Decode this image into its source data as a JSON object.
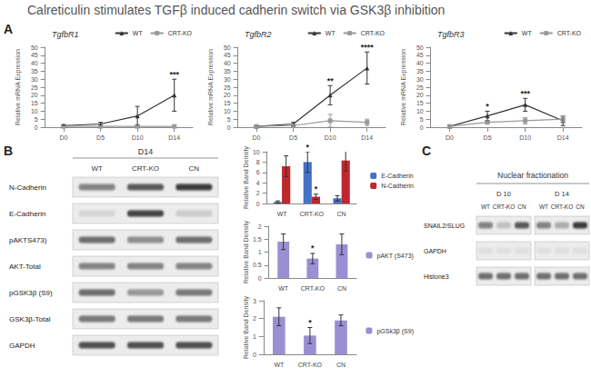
{
  "figure_title": "Calreticulin stimulates TGFβ induced cadherin switch via GSK3β inhibition",
  "panel_labels": [
    "A",
    "B",
    "C"
  ],
  "chart_data": [
    {
      "type": "line",
      "title": "TgfbR1",
      "y_label": "Relative mRNA Expression",
      "categories": [
        "D0",
        "D5",
        "D10",
        "D14"
      ],
      "series": [
        {
          "name": "WT",
          "color": "#333333",
          "marker": "triangle",
          "values": [
            1,
            2,
            7,
            20
          ],
          "errors": [
            0.5,
            1,
            6,
            10
          ]
        },
        {
          "name": "CRT-KO",
          "color": "#999999",
          "marker": "square",
          "values": [
            0.5,
            0.5,
            0.5,
            0.5
          ],
          "errors": [
            0.2,
            0.2,
            0.3,
            0.4
          ]
        }
      ],
      "annotations": [
        {
          "category": "D14",
          "series": "WT",
          "text": "***"
        }
      ],
      "ylim": [
        0,
        50
      ],
      "yticks": [
        0,
        5,
        10,
        15,
        20,
        25,
        30,
        35,
        40,
        45,
        50
      ],
      "legend": "top-right",
      "grid": false
    },
    {
      "type": "line",
      "title": "TgfbR2",
      "y_label": "Relative mRNA Expression",
      "categories": [
        "D0",
        "D5",
        "D10",
        "D14"
      ],
      "series": [
        {
          "name": "WT",
          "color": "#333333",
          "marker": "triangle",
          "values": [
            0.5,
            2,
            20,
            37
          ],
          "errors": [
            0.3,
            1,
            6,
            10
          ]
        },
        {
          "name": "CRT-KO",
          "color": "#999999",
          "marker": "square",
          "values": [
            0.5,
            1,
            4,
            3
          ],
          "errors": [
            0.3,
            0.5,
            4,
            2
          ]
        }
      ],
      "annotations": [
        {
          "category": "D10",
          "series": "WT",
          "text": "**"
        },
        {
          "category": "D14",
          "series": "WT",
          "text": "****"
        }
      ],
      "ylim": [
        0,
        50
      ],
      "yticks": [
        0,
        5,
        10,
        15,
        20,
        25,
        30,
        35,
        40,
        45,
        50
      ],
      "legend": "top-right",
      "grid": false
    },
    {
      "type": "line",
      "title": "TgfbR3",
      "y_label": "Relative mRNA Expression",
      "categories": [
        "D0",
        "D5",
        "D10",
        "D14"
      ],
      "series": [
        {
          "name": "WT",
          "color": "#333333",
          "marker": "triangle",
          "values": [
            0.5,
            7,
            14,
            4
          ],
          "errors": [
            0.3,
            3,
            4,
            3
          ]
        },
        {
          "name": "CRT-KO",
          "color": "#999999",
          "marker": "square",
          "values": [
            0.5,
            3,
            4,
            5
          ],
          "errors": [
            0.3,
            1,
            2,
            2
          ]
        }
      ],
      "annotations": [
        {
          "category": "D5",
          "series": "WT",
          "text": "*"
        },
        {
          "category": "D10",
          "series": "WT",
          "text": "***"
        }
      ],
      "ylim": [
        0,
        50
      ],
      "yticks": [
        0,
        5,
        10,
        15,
        20,
        25,
        30,
        35,
        40,
        45,
        50
      ],
      "legend": "top-right",
      "grid": false
    },
    {
      "type": "bar",
      "y_label": "Relative Band Density",
      "categories": [
        "WT",
        "CRT-KO",
        "CN"
      ],
      "series": [
        {
          "name": "E-Cadherin",
          "color": "#4472c4",
          "values": [
            0.3,
            8,
            1
          ],
          "errors": [
            0.2,
            2,
            0.5
          ]
        },
        {
          "name": "N-Cadherin",
          "color": "#c0272d",
          "values": [
            7.2,
            1.3,
            8.3
          ],
          "errors": [
            2,
            0.5,
            2
          ]
        }
      ],
      "annotations": [
        {
          "category": "CRT-KO",
          "series": "E-Cadherin",
          "text": "*"
        },
        {
          "category": "CRT-KO",
          "series": "N-Cadherin",
          "text": "*"
        }
      ],
      "ylim": [
        0,
        10
      ],
      "yticks": [
        0,
        2,
        4,
        6,
        8,
        10
      ],
      "legend": "right",
      "grid": false
    },
    {
      "type": "bar",
      "y_label": "Relative Band Density",
      "categories": [
        "WT",
        "CRT-KO",
        "CN"
      ],
      "series": [
        {
          "name": "pAKT (S473)",
          "color": "#9b8fd4",
          "values": [
            1.4,
            0.75,
            1.3
          ],
          "errors": [
            0.3,
            0.2,
            0.4
          ]
        }
      ],
      "annotations": [
        {
          "category": "CRT-KO",
          "series": "pAKT (S473)",
          "text": "*"
        }
      ],
      "ylim": [
        0,
        2
      ],
      "yticks": [
        0,
        0.5,
        1,
        1.5,
        2
      ],
      "legend": "right",
      "grid": false
    },
    {
      "type": "bar",
      "y_label": "Relative Band Density",
      "categories": [
        "WT",
        "CRT-KO",
        "CN"
      ],
      "series": [
        {
          "name": "pGSk3β (S9)",
          "color": "#9b8fd4",
          "values": [
            2.1,
            1.05,
            1.9
          ],
          "errors": [
            0.5,
            0.45,
            0.3
          ]
        }
      ],
      "annotations": [
        {
          "category": "CRT-KO",
          "series": "pGSk3β (S9)",
          "text": "*"
        }
      ],
      "ylim": [
        0,
        3
      ],
      "yticks": [
        0,
        1,
        2,
        3
      ],
      "legend": "right",
      "grid": false
    }
  ],
  "blots": {
    "panel_b": {
      "timepoint": "D14",
      "lanes": [
        "WT",
        "CRT-KO",
        "CN"
      ],
      "rows": [
        "N-Cadherin",
        "E-Cadherin",
        "pAKTS473)",
        "AKT-Total",
        "pGSK3β (S9)",
        "GSK3β-Total",
        "GAPDH"
      ]
    },
    "panel_c": {
      "title": "Nuclear fractionation",
      "groups": [
        {
          "label": "D 10",
          "lanes": [
            "WT",
            "CRT-KO",
            "CN"
          ]
        },
        {
          "label": "D 14",
          "lanes": [
            "WT",
            "CRT-KO",
            "CN"
          ]
        }
      ],
      "rows": [
        "SNAIL2/SLUG",
        "GAPDH",
        "Histone3"
      ]
    }
  }
}
